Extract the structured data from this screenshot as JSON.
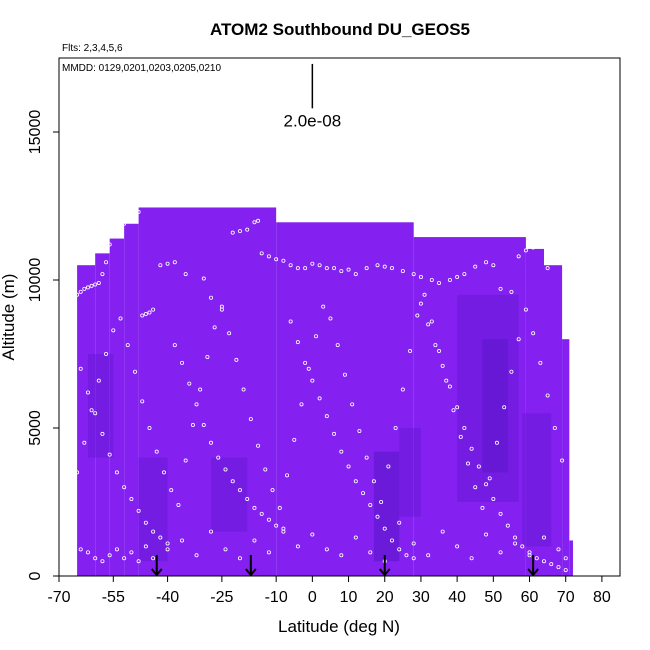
{
  "chart_data": {
    "type": "heatmap",
    "title": "ATOM2 Southbound DU_GEOS5",
    "subtitle_flights": "Flts: 2,3,4,5,6",
    "annotation_mmdd": "MMDD: 0129,0201,0203,0205,0210",
    "xlabel": "Latitude (deg N)",
    "ylabel": "Altitude (m)",
    "xlim": [
      -70,
      85
    ],
    "ylim": [
      0,
      17500
    ],
    "x_ticks": [
      -70,
      -55,
      -40,
      -25,
      -10,
      0,
      10,
      20,
      30,
      40,
      50,
      60,
      70,
      80
    ],
    "x_tick_labels": [
      "-70",
      "-55",
      "-40",
      "-25",
      "-10",
      "0",
      "10",
      "20",
      "30",
      "40",
      "50",
      "60",
      "70",
      "80"
    ],
    "y_ticks": [
      0,
      5000,
      10000,
      15000
    ],
    "y_tick_labels": [
      "0",
      "5000",
      "10000",
      "15000"
    ],
    "scale_bar_label": "2.0e-08",
    "scale_bar_x": 0,
    "scale_bar_y_range": [
      15800,
      17300
    ],
    "flight_marker_latitudes": [
      -43,
      -17,
      20,
      61
    ],
    "colors": {
      "field": "#8420f0",
      "field_dark": "#6a1ad8",
      "field_darker": "#5a16c8",
      "points": "#ffffff",
      "axis": "#000000"
    },
    "field_envelope": [
      {
        "x0": -65,
        "x1": -60,
        "top": 10500
      },
      {
        "x0": -60,
        "x1": -56,
        "top": 10900
      },
      {
        "x0": -56,
        "x1": -52,
        "top": 11400
      },
      {
        "x0": -52,
        "x1": -48,
        "top": 11900
      },
      {
        "x0": -48,
        "x1": -10,
        "top": 12450
      },
      {
        "x0": -10,
        "x1": 28,
        "top": 11950
      },
      {
        "x0": 28,
        "x1": 59,
        "top": 11450
      },
      {
        "x0": 59,
        "x1": 64,
        "top": 11050
      },
      {
        "x0": 64,
        "x1": 69,
        "top": 10500
      },
      {
        "x0": 69,
        "x1": 71,
        "top": 8000
      },
      {
        "x0": 71,
        "x1": 72,
        "top": 1200
      }
    ],
    "dark_regions": [
      {
        "x0": 17,
        "x1": 24,
        "y0": 500,
        "y1": 4200,
        "level": "darker"
      },
      {
        "x0": 24,
        "x1": 30,
        "y0": 2000,
        "y1": 5000,
        "level": "dark"
      },
      {
        "x0": 40,
        "x1": 57,
        "y0": 2500,
        "y1": 9500,
        "level": "dark"
      },
      {
        "x0": 47,
        "x1": 54,
        "y0": 3500,
        "y1": 8000,
        "level": "darker"
      },
      {
        "x0": 58,
        "x1": 66,
        "y0": 1000,
        "y1": 5500,
        "level": "dark"
      },
      {
        "x0": -48,
        "x1": -40,
        "y0": 500,
        "y1": 4000,
        "level": "dark"
      },
      {
        "x0": -62,
        "x1": -55,
        "y0": 4000,
        "y1": 7500,
        "level": "dark"
      },
      {
        "x0": -28,
        "x1": -18,
        "y0": 1500,
        "y1": 4000,
        "level": "dark"
      }
    ],
    "series": [
      {
        "x": [
          -65,
          -64,
          -63,
          -62,
          -61,
          -60,
          -59,
          -58,
          -57,
          -56,
          -55,
          -54,
          -53,
          -52,
          -51,
          -50,
          -49,
          -48,
          -47,
          -46,
          -45,
          -44,
          -42,
          -40,
          -38,
          -35,
          -30,
          -28,
          -25,
          -22,
          -20,
          -18,
          -16,
          -15,
          -14,
          -12,
          -10,
          -8,
          -6,
          -4,
          -2,
          0,
          2,
          4,
          6,
          8,
          10,
          12,
          15,
          18,
          20,
          22,
          25,
          28,
          30,
          33,
          35,
          38,
          40,
          42,
          45,
          48,
          50,
          52,
          55,
          57,
          59,
          61,
          63,
          65
        ],
        "y": [
          9500,
          9600,
          9700,
          9750,
          9800,
          9850,
          9900,
          10200,
          10600,
          11200,
          11500,
          11700,
          11800,
          11900,
          12000,
          12100,
          12200,
          12300,
          8800,
          8850,
          8900,
          9000,
          10500,
          10550,
          10600,
          10200,
          10050,
          9400,
          9100,
          11600,
          11650,
          11700,
          11950,
          12000,
          10900,
          10800,
          10700,
          10650,
          10500,
          10400,
          10400,
          10550,
          10500,
          10400,
          10400,
          10300,
          10350,
          10200,
          10400,
          10500,
          10450,
          10400,
          10300,
          10200,
          10100,
          10000,
          9900,
          10000,
          10100,
          10200,
          10450,
          10600,
          10500,
          9700,
          9600,
          10800,
          11000,
          11100,
          11200,
          10400
        ]
      },
      {
        "x": [
          -64,
          -62,
          -60,
          -58,
          -56,
          -54,
          -52,
          -50,
          -48,
          -46,
          -44,
          -42,
          -40,
          -38,
          -36,
          -34,
          -32,
          -30,
          -28,
          -26,
          -24,
          -22,
          -20,
          -18,
          -16,
          -14,
          -12,
          -10,
          -8,
          -6,
          -4,
          -2,
          0,
          2,
          4,
          6,
          8,
          10,
          12,
          14,
          16,
          18,
          20,
          22,
          24,
          26,
          28,
          30,
          32,
          34,
          36,
          38,
          40,
          42,
          44,
          46,
          48,
          50,
          52,
          54,
          56,
          58,
          60,
          62,
          64,
          66,
          68,
          70
        ],
        "y": [
          7000,
          6200,
          5500,
          4800,
          4100,
          3500,
          3000,
          2600,
          2200,
          1800,
          1500,
          1300,
          1100,
          7800,
          7200,
          6500,
          5800,
          5100,
          4500,
          4000,
          3600,
          3200,
          2900,
          2600,
          2300,
          2100,
          1900,
          1700,
          1500,
          8600,
          7900,
          7200,
          6600,
          6000,
          5400,
          4800,
          4200,
          3700,
          3200,
          2800,
          2400,
          2000,
          1600,
          1200,
          900,
          700,
          600,
          9200,
          8500,
          7800,
          7100,
          6400,
          5700,
          5000,
          4300,
          3700,
          3100,
          2600,
          2100,
          1700,
          1300,
          1000,
          800,
          600,
          500,
          400,
          300,
          200
        ]
      },
      {
        "x": [
          -66,
          -64,
          -62,
          -60,
          -58,
          -56,
          -54,
          -52,
          -50,
          -48,
          -46,
          -44,
          -40,
          -36,
          -32,
          -28,
          -24,
          -20,
          -16,
          -12,
          -8,
          -4,
          0,
          4,
          8,
          12,
          16,
          20,
          24,
          28,
          32,
          36,
          40,
          44,
          48,
          52,
          56,
          60,
          64,
          68,
          70
        ],
        "y": [
          1400,
          900,
          800,
          600,
          500,
          700,
          900,
          600,
          800,
          500,
          1000,
          600,
          900,
          1200,
          700,
          1500,
          900,
          600,
          1200,
          800,
          1600,
          1000,
          1400,
          900,
          700,
          1300,
          800,
          500,
          1800,
          1100,
          700,
          1500,
          1000,
          600,
          1400,
          800,
          1100,
          700,
          1300,
          900,
          600
        ]
      },
      {
        "x": [
          -65,
          -63,
          -61,
          -59,
          -57,
          -55,
          -53,
          -51,
          -49,
          -47,
          -45,
          -43,
          -41,
          -39,
          -37,
          -35,
          -33,
          -31,
          -29,
          -27,
          -25,
          -23,
          -21,
          -19,
          -17,
          -15,
          -13,
          -11,
          -9,
          -7,
          -5,
          -3,
          -1,
          1,
          3,
          5,
          7,
          9,
          11,
          13,
          15,
          17,
          19,
          21,
          23,
          25,
          27,
          29,
          31,
          33,
          35,
          37,
          39,
          41,
          43,
          45,
          47,
          49,
          51,
          53,
          55,
          57,
          59,
          61,
          63,
          65,
          67,
          69
        ],
        "y": [
          3500,
          4500,
          5600,
          6600,
          7500,
          8300,
          8700,
          7800,
          6900,
          5900,
          5000,
          4200,
          3500,
          2900,
          2400,
          3900,
          5100,
          6300,
          7400,
          8400,
          9000,
          8200,
          7300,
          6300,
          5300,
          4400,
          3600,
          2900,
          2300,
          3400,
          4600,
          5800,
          7000,
          8100,
          9100,
          8700,
          7800,
          6800,
          5800,
          4900,
          4000,
          3200,
          2500,
          3700,
          5000,
          6300,
          7600,
          8800,
          9500,
          8600,
          7600,
          6600,
          5600,
          4700,
          3800,
          3000,
          2300,
          3300,
          4500,
          5700,
          6900,
          8000,
          9000,
          8200,
          7200,
          6100,
          5000,
          3900
        ]
      }
    ]
  }
}
